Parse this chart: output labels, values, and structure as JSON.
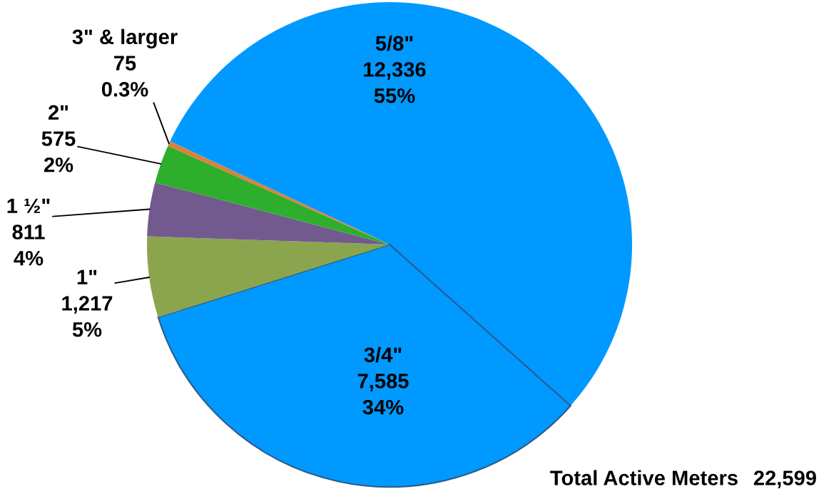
{
  "chart_data": {
    "type": "pie",
    "categories": [
      "5/8\"",
      "3/4\"",
      "1\"",
      "1 ½\"",
      "2\"",
      "3\" & larger"
    ],
    "values": [
      12336,
      7585,
      1217,
      811,
      575,
      75
    ],
    "colors": [
      "#0099ff",
      "#0099ff",
      "#8ba54e",
      "#725a8e",
      "#2dae2d",
      "#dd8039"
    ],
    "value_labels": [
      "12,336\n55%",
      "7,585\n34%",
      "1,217\n5%",
      "811\n4%",
      "575\n2%",
      "75\n0.3%"
    ],
    "annotations": [
      "Total Active Meters",
      "22,599"
    ]
  }
}
